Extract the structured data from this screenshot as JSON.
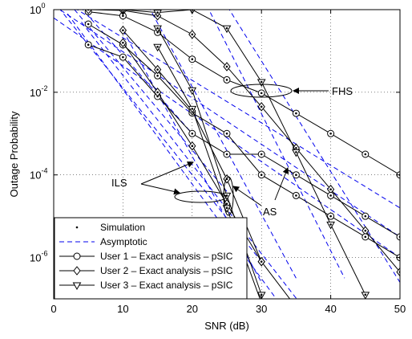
{
  "chart_data": {
    "type": "line",
    "xlabel": "SNR (dB)",
    "ylabel": "Outage Probability",
    "xlim": [
      0,
      50
    ],
    "ylim_log10": [
      -7,
      0
    ],
    "y_scale": "log",
    "grid": true,
    "x_ticks": [
      "0",
      "10",
      "20",
      "30",
      "40",
      "50"
    ],
    "y_ticks": [
      {
        "exp": -6,
        "base": "10",
        "sup": "-6"
      },
      {
        "exp": -4,
        "base": "10",
        "sup": "-4"
      },
      {
        "exp": -2,
        "base": "10",
        "sup": "-2"
      },
      {
        "exp": 0,
        "base": "10",
        "sup": "0"
      }
    ],
    "legend": {
      "placement": "bottom-left",
      "entries": [
        {
          "label": "Simulation",
          "style": "dot"
        },
        {
          "label": "Asymptotic",
          "style": "dashed",
          "color": "#0000ee"
        },
        {
          "label": "User 1 – Exact analysis – pSIC",
          "style": "circle"
        },
        {
          "label": "User 2 – Exact analysis – pSIC",
          "style": "diamond"
        },
        {
          "label": "User 3 – Exact analysis – pSIC",
          "style": "triangle"
        }
      ]
    },
    "annotations": [
      {
        "text": "FHS"
      },
      {
        "text": "ILS"
      },
      {
        "text": "AS"
      }
    ],
    "series": [
      {
        "marker": "circle",
        "x": [
          5,
          10,
          15,
          20,
          25,
          30,
          35,
          40,
          45,
          50
        ],
        "y_log10": [
          -0.05,
          -0.15,
          -0.55,
          -1.2,
          -1.7,
          -2.02,
          -2.51,
          -3.0,
          -3.5,
          -4.0
        ]
      },
      {
        "marker": "diamond",
        "x": [
          5,
          10,
          15,
          20,
          25,
          30,
          35,
          40,
          45,
          50
        ],
        "y_log10": [
          0.0,
          -0.02,
          -0.15,
          -0.6,
          -1.38,
          -2.35,
          -3.35,
          -4.35,
          -5.35,
          -6.35
        ]
      },
      {
        "marker": "triangle",
        "x": [
          10,
          15,
          20,
          25,
          30,
          35,
          40,
          45
        ],
        "y_log10": [
          0.0,
          -0.07,
          0.0,
          -0.45,
          -1.75,
          -3.45,
          -5.2,
          -6.9
        ]
      },
      {
        "marker": "circle",
        "x": [
          5,
          10,
          15,
          20,
          25,
          30,
          35,
          40,
          45,
          50
        ],
        "y_log10": [
          -0.85,
          -1.15,
          -2.1,
          -3.0,
          -3.5,
          -3.5,
          -4.0,
          -4.5,
          -5.0,
          -5.5
        ]
      },
      {
        "marker": "circle",
        "x": [
          5,
          10,
          15,
          20,
          25,
          30,
          35,
          40,
          45,
          50
        ],
        "y_log10": [
          -0.35,
          -0.85,
          -1.6,
          -2.5,
          -3.0,
          -4.0,
          -4.5,
          -5.0,
          -5.5,
          -6.0
        ]
      },
      {
        "marker": "diamond",
        "x": [
          10,
          15,
          20,
          25,
          30
        ],
        "y_log10": [
          -0.5,
          -1.45,
          -2.45,
          -4.1,
          -6.1
        ]
      },
      {
        "marker": "diamond",
        "x": [
          10,
          15,
          20,
          25,
          30,
          35
        ],
        "y_log10": [
          -0.8,
          -2.0,
          -3.3,
          -4.7,
          -6.1,
          -7.2
        ]
      },
      {
        "marker": "triangle",
        "x": [
          15,
          20,
          25,
          30
        ],
        "y_log10": [
          -0.45,
          -1.95,
          -4.5,
          -6.9
        ]
      },
      {
        "marker": "triangle",
        "x": [
          15,
          20,
          25,
          30
        ],
        "y_log10": [
          -0.9,
          -2.4,
          -4.8,
          -7.1
        ]
      }
    ],
    "asymptotes": [
      {
        "p1": [
          0,
          0.35
        ],
        "p2": [
          50,
          -4.8
        ]
      },
      {
        "p1": [
          0,
          0.1
        ],
        "p2": [
          50,
          -5.5
        ]
      },
      {
        "p1": [
          0,
          -0.2
        ],
        "p2": [
          50,
          -6.0
        ]
      },
      {
        "p1": [
          0,
          0.8
        ],
        "p2": [
          20,
          -3.0
        ]
      },
      {
        "p1": [
          0,
          0.6
        ],
        "p2": [
          25,
          -4.4
        ]
      },
      {
        "p1": [
          0,
          0.2
        ],
        "p2": [
          30,
          -6.1
        ]
      },
      {
        "p1": [
          10,
          -0.5
        ],
        "p2": [
          30,
          -6.6
        ]
      },
      {
        "p1": [
          2,
          -0.1
        ],
        "p2": [
          33,
          -7.2
        ]
      },
      {
        "p1": [
          4,
          -0.3
        ],
        "p2": [
          36,
          -7.2
        ]
      },
      {
        "p1": [
          12,
          0.6
        ],
        "p2": [
          35,
          -6.5
        ]
      },
      {
        "p1": [
          20,
          0.8
        ],
        "p2": [
          42,
          -6.5
        ]
      },
      {
        "p1": [
          22,
          0.9
        ],
        "p2": [
          50,
          -6.6
        ]
      }
    ]
  }
}
